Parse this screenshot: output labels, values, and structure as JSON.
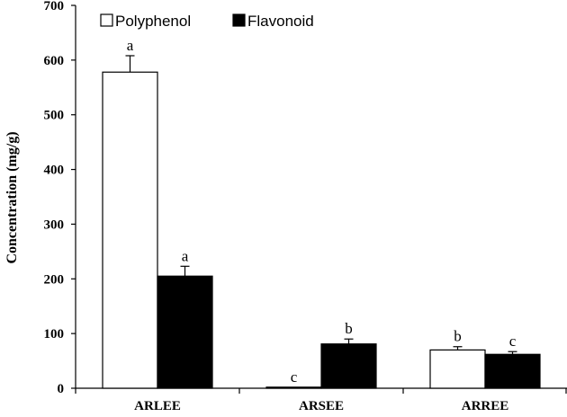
{
  "chart_data": {
    "type": "bar",
    "title": "",
    "xlabel": "",
    "ylabel": "Concentration (mg/g)",
    "ylim": [
      0,
      700
    ],
    "yticks": [
      0,
      100,
      200,
      300,
      400,
      500,
      600,
      700
    ],
    "categories": [
      "ARLEE",
      "ARSEE",
      "ARREE"
    ],
    "series": [
      {
        "name": "Polyphenol",
        "color": "#ffffff",
        "values": [
          578,
          2,
          70
        ],
        "errors": [
          30,
          0,
          6
        ],
        "labels": [
          "a",
          "c",
          "b"
        ]
      },
      {
        "name": "Flavonoid",
        "color": "#000000",
        "values": [
          205,
          81,
          62
        ],
        "errors": [
          18,
          9,
          5
        ],
        "labels": [
          "a",
          "b",
          "c"
        ]
      }
    ],
    "legend": "top-left",
    "grid": false
  }
}
